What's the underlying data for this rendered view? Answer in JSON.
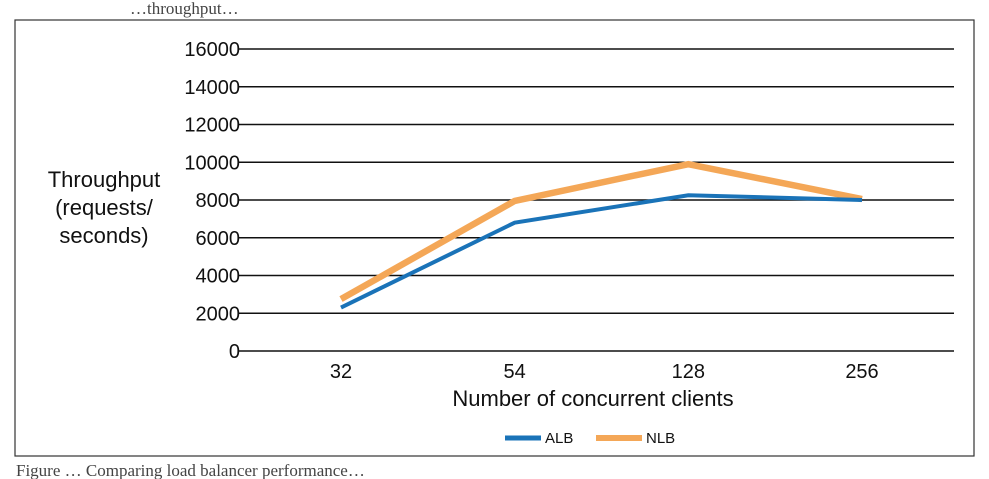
{
  "caption": {
    "top": "…throughput…",
    "bottom": "Figure …  Comparing load balancer performance…"
  },
  "chart_data": {
    "type": "line",
    "title": "",
    "xlabel": "Number of concurrent clients",
    "ylabel_lines": [
      "Throughput",
      "(requests/",
      "seconds)"
    ],
    "categories": [
      "32",
      "54",
      "128",
      "256"
    ],
    "ylim": [
      0,
      16000
    ],
    "yticks": [
      0,
      2000,
      4000,
      6000,
      8000,
      10000,
      12000,
      14000,
      16000
    ],
    "ytick_labels": [
      "0",
      "2000",
      "4000",
      "6000",
      "8000",
      "10000",
      "12000",
      "14000",
      "16000"
    ],
    "grid": true,
    "legend_position": "bottom",
    "series": [
      {
        "name": "ALB",
        "color": "#1a73b8",
        "values": [
          2300,
          6800,
          8250,
          8000
        ]
      },
      {
        "name": "NLB",
        "color": "#f4a757",
        "values": [
          2750,
          7950,
          9900,
          8050
        ]
      }
    ]
  }
}
